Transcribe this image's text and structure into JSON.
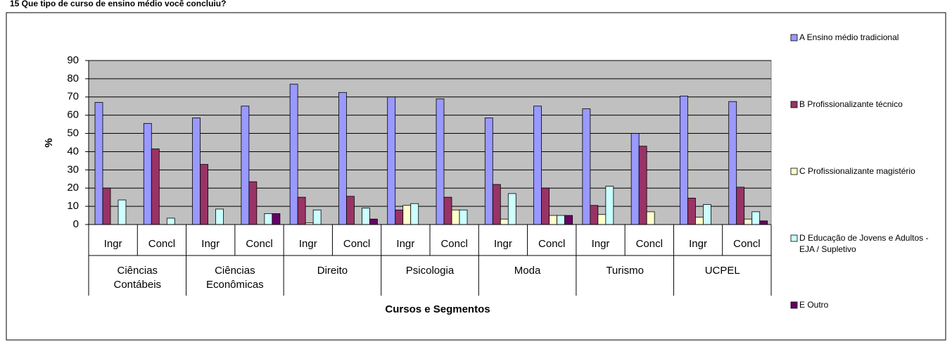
{
  "chart_data": {
    "type": "bar",
    "title": "15 Que tipo de curso de ensino médio você concluiu?",
    "x_label": "Cursos e Segmentos",
    "y_label": "%",
    "categories": [
      "Ingr",
      "Concl",
      "Ingr",
      "Concl",
      "Ingr",
      "Concl",
      "Ingr",
      "Concl",
      "Ingr",
      "Concl",
      "Ingr",
      "Concl",
      "Ingr",
      "Concl"
    ],
    "groups": [
      "Ciências Contábeis",
      "Ciências Econômicas",
      "Direito",
      "Psicologia",
      "Moda",
      "Turismo",
      "UCPEL"
    ],
    "ylim": [
      0,
      90
    ],
    "yticks": [
      0,
      10,
      20,
      30,
      40,
      50,
      60,
      70,
      80,
      90
    ],
    "grid": true,
    "legend": "right",
    "series": [
      {
        "name": "A Ensino médio tradicional",
        "color": "#9999ff",
        "values": [
          67,
          55.5,
          58.5,
          65,
          77,
          72.5,
          70,
          69,
          58.5,
          65,
          63.5,
          50,
          70.5,
          67.5
        ]
      },
      {
        "name": "B Profissionalizante técnico",
        "color": "#993366",
        "values": [
          20,
          41.5,
          33,
          23.5,
          15,
          15.5,
          8,
          15,
          22,
          20,
          10.5,
          43,
          14.5,
          20.5
        ]
      },
      {
        "name": "C Profissionalizante magistério",
        "color": "#ffffcc",
        "values": [
          0,
          0,
          0,
          0,
          1,
          0,
          10.5,
          8,
          3,
          5,
          5.5,
          7,
          4,
          3
        ]
      },
      {
        "name": "D Educação de Jovens e Adultos - EJA / Supletivo",
        "color": "#ccffff",
        "values": [
          13.5,
          3.5,
          8.5,
          6,
          8,
          9,
          11.5,
          8,
          17,
          5,
          21,
          0,
          11,
          7
        ]
      },
      {
        "name": "E Outro",
        "color": "#660066",
        "values": [
          0,
          0,
          0,
          6,
          0,
          3,
          0,
          0,
          0,
          5,
          0,
          0,
          0,
          2
        ]
      }
    ]
  }
}
